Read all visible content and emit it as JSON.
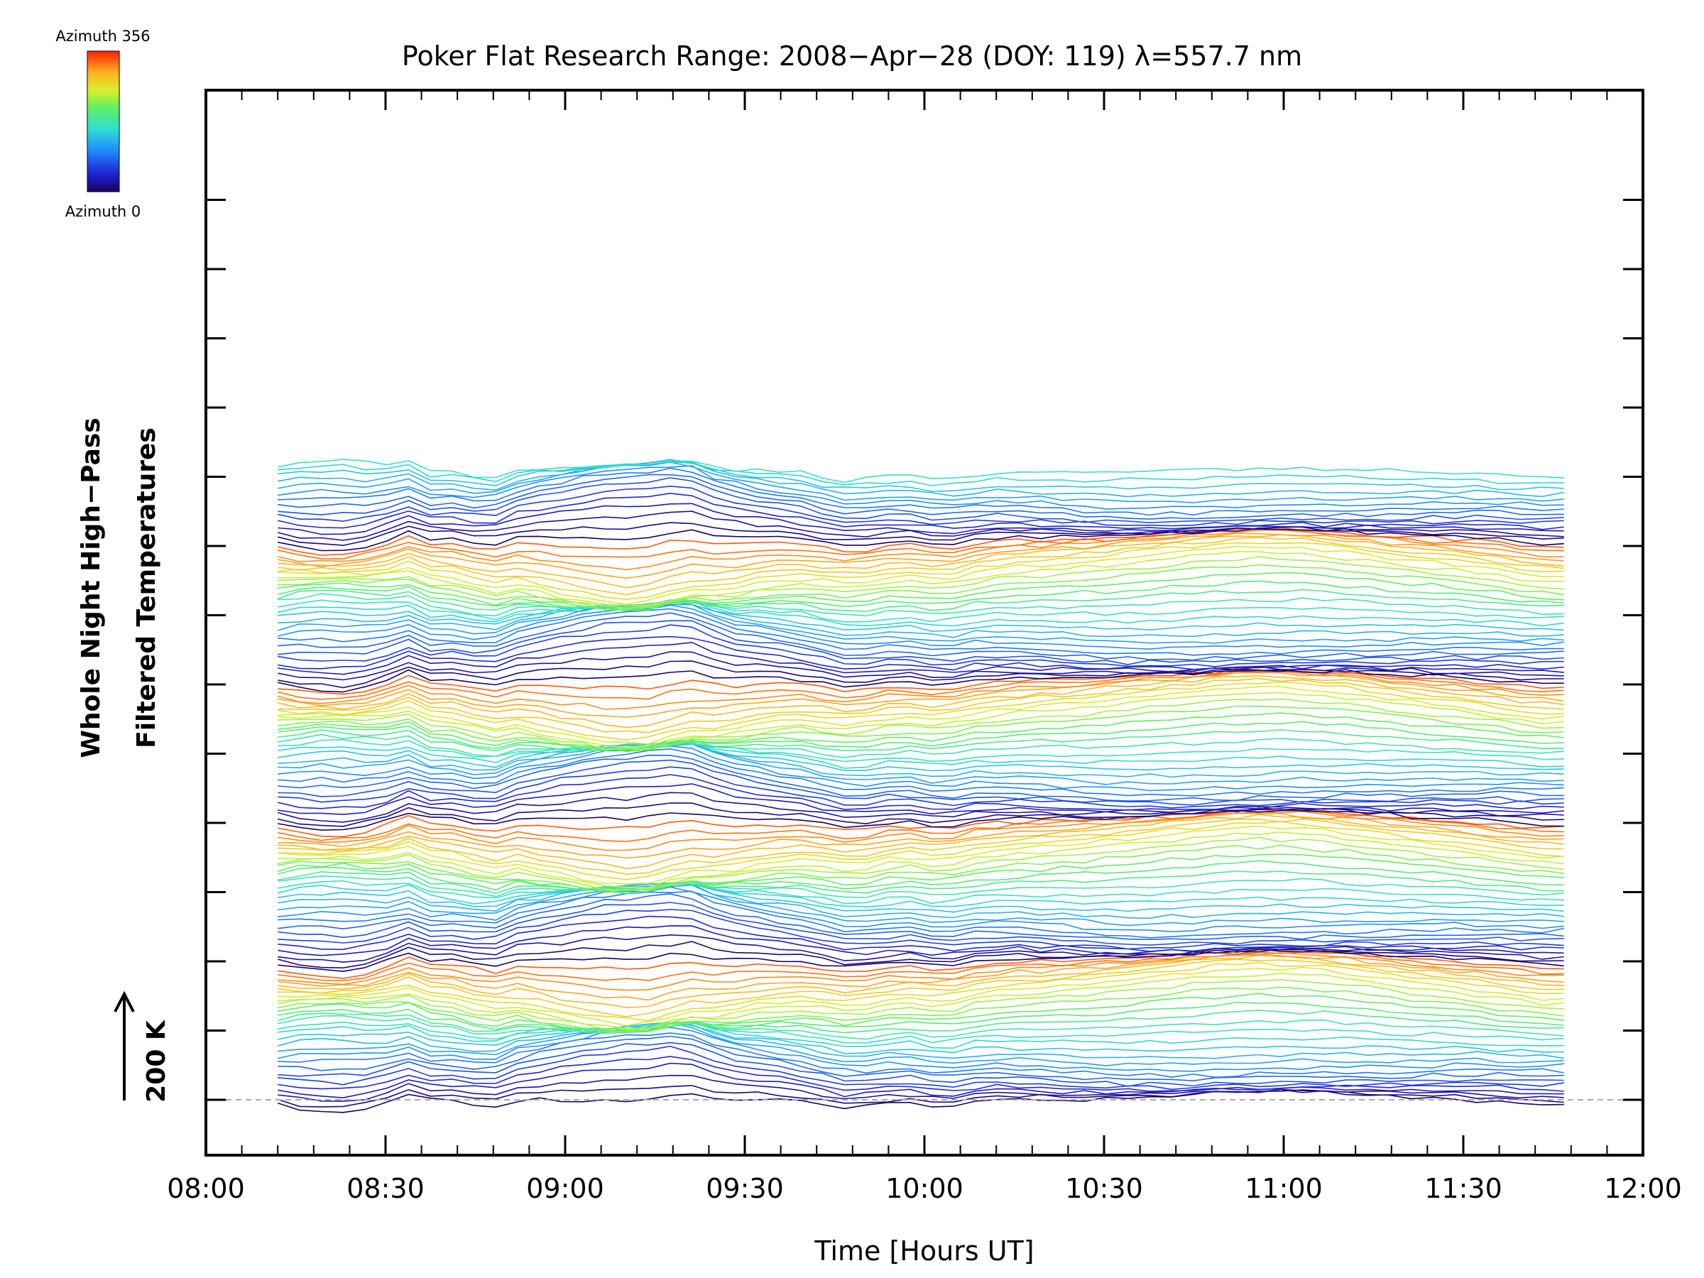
{
  "chart_data": {
    "type": "line",
    "title": "Poker Flat Research Range: 2008−Apr−28 (DOY: 119) λ=557.7 nm",
    "xlabel": "Time [Hours UT]",
    "ylabel_line1": "Whole Night High−Pass",
    "ylabel_line2": "Filtered Temperatures",
    "scale_bar_label": "200 K",
    "scale_bar_value_K": 200,
    "x_tick_labels": [
      "08:00",
      "08:30",
      "09:00",
      "09:30",
      "10:00",
      "10:30",
      "11:00",
      "11:30",
      "12:00"
    ],
    "x_range_hours": [
      8.0,
      12.0
    ],
    "x_data_range_hours": [
      8.2,
      11.78
    ],
    "colorbar": {
      "top_label": "Azimuth 356",
      "bottom_label": "Azimuth 0",
      "min": 0,
      "max": 356,
      "colormap": "rainbow (blue-to-red)"
    },
    "stacked_series_count": 135,
    "traces_per_azimuth_cycle": 30,
    "grid": false,
    "baseline_dashed": true
  },
  "colors": {
    "axis": "#000000",
    "baseline": "#aaaaaa",
    "background": "#ffffff"
  }
}
